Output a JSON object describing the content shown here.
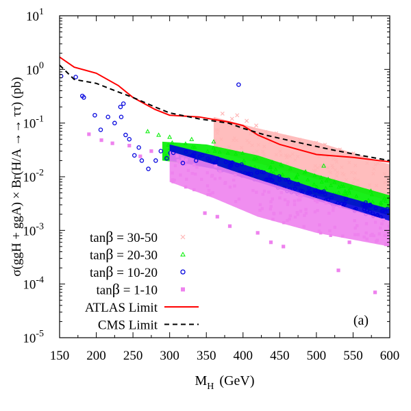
{
  "chart_data": {
    "type": "scatter",
    "y_scale": "log",
    "xlabel": "M",
    "xlabel_sub": "H",
    "xlabel_unit": "(GeV)",
    "ylabel": "σ(ggH + ggA) × Br(H/A →→ ττ) (pb)",
    "panel_label": "(a)",
    "xlim": [
      150,
      600
    ],
    "ylim": [
      1e-05,
      10
    ],
    "x_ticks": [
      150,
      200,
      250,
      300,
      350,
      400,
      450,
      500,
      550,
      600
    ],
    "x_tick_labels": [
      "150",
      "200",
      "250",
      "300",
      "350",
      "400",
      "450",
      "500",
      "550",
      "600"
    ],
    "y_ticks": [
      {
        "value": 1e-05,
        "base": "10",
        "exp": "-5"
      },
      {
        "value": 0.0001,
        "base": "10",
        "exp": "-4"
      },
      {
        "value": 0.001,
        "base": "10",
        "exp": "-3"
      },
      {
        "value": 0.01,
        "base": "10",
        "exp": "-2"
      },
      {
        "value": 0.1,
        "base": "10",
        "exp": "-1"
      },
      {
        "value": 1,
        "base": "10",
        "exp": "0"
      },
      {
        "value": 10,
        "base": "10",
        "exp": "1"
      }
    ],
    "legend_position": "bottom-left",
    "series": [
      {
        "name": "tanβ = 30-50",
        "label_prefix": "tan",
        "label_greek": "β",
        "label_rest": " = 30-50",
        "marker": "x",
        "color": "#ffb6b6",
        "band": {
          "x_start": 360,
          "x_end": 600,
          "upper": [
            [
              360,
              0.13
            ],
            [
              420,
              0.08
            ],
            [
              500,
              0.045
            ],
            [
              600,
              0.017
            ]
          ],
          "lower": [
            [
              360,
              0.03
            ],
            [
              420,
              0.018
            ],
            [
              500,
              0.009
            ],
            [
              600,
              0.0035
            ]
          ]
        },
        "points": [
          [
            372,
            0.15
          ],
          [
            392,
            0.14
          ],
          [
            405,
            0.11
          ],
          [
            418,
            0.09
          ],
          [
            385,
            0.12
          ]
        ]
      },
      {
        "name": "tanβ = 20-30",
        "label_prefix": "tan",
        "label_greek": "β",
        "label_rest": " = 20-30",
        "marker": "triangle",
        "color": "#00ee00",
        "band": {
          "x_start": 290,
          "x_end": 600,
          "upper": [
            [
              290,
              0.045
            ],
            [
              350,
              0.04
            ],
            [
              420,
              0.025
            ],
            [
              500,
              0.011
            ],
            [
              600,
              0.0045
            ]
          ],
          "lower": [
            [
              290,
              0.02
            ],
            [
              350,
              0.016
            ],
            [
              420,
              0.009
            ],
            [
              500,
              0.0045
            ],
            [
              600,
              0.0019
            ]
          ]
        },
        "points": [
          [
            270,
            0.07
          ],
          [
            285,
            0.06
          ],
          [
            300,
            0.055
          ],
          [
            330,
            0.05
          ],
          [
            360,
            0.045
          ],
          [
            510,
            0.016
          ]
        ]
      },
      {
        "name": "tanβ = 10-20",
        "label_prefix": "tan",
        "label_greek": "β",
        "label_rest": " = 10-20",
        "marker": "circle",
        "color": "#0000dd",
        "band": {
          "x_start": 300,
          "x_end": 600,
          "upper": [
            [
              300,
              0.04
            ],
            [
              360,
              0.025
            ],
            [
              420,
              0.014
            ],
            [
              500,
              0.006
            ],
            [
              600,
              0.0025
            ]
          ],
          "lower": [
            [
              300,
              0.02
            ],
            [
              360,
              0.014
            ],
            [
              420,
              0.008
            ],
            [
              500,
              0.0036
            ],
            [
              600,
              0.0015
            ]
          ]
        },
        "points": [
          [
            152,
            0.75
          ],
          [
            181,
            0.32
          ],
          [
            183,
            0.3
          ],
          [
            198,
            0.14
          ],
          [
            206,
            0.075
          ],
          [
            216,
            0.13
          ],
          [
            225,
            0.1
          ],
          [
            234,
            0.13
          ],
          [
            237,
            0.23
          ],
          [
            240,
            0.06
          ],
          [
            252,
            0.025
          ],
          [
            262,
            0.02
          ],
          [
            271,
            0.014
          ],
          [
            281,
            0.02
          ],
          [
            296,
            0.022
          ],
          [
            318,
            0.018
          ],
          [
            336,
            0.02
          ],
          [
            394,
            0.52
          ],
          [
            172,
            0.72
          ],
          [
            233,
            0.2
          ],
          [
            245,
            0.05
          ],
          [
            258,
            0.035
          ],
          [
            288,
            0.03
          ],
          [
            305,
            0.028
          ]
        ]
      },
      {
        "name": "tanβ = 1-10",
        "label_prefix": "tan",
        "label_greek": "β",
        "label_rest": " = 1-10",
        "marker": "square",
        "color": "#ee82ee",
        "band": {
          "x_start": 300,
          "x_end": 600,
          "upper": [
            [
              300,
              0.03
            ],
            [
              360,
              0.017
            ],
            [
              420,
              0.009
            ],
            [
              500,
              0.004
            ],
            [
              600,
              0.0015
            ]
          ],
          "lower": [
            [
              300,
              0.008
            ],
            [
              360,
              0.004
            ],
            [
              420,
              0.0018
            ],
            [
              500,
              0.0009
            ],
            [
              600,
              0.0005
            ]
          ]
        },
        "points": [
          [
            190,
            0.062
          ],
          [
            207,
            0.048
          ],
          [
            222,
            0.042
          ],
          [
            245,
            0.038
          ],
          [
            260,
            0.024
          ],
          [
            275,
            0.03
          ],
          [
            348,
            0.0021
          ],
          [
            365,
            0.0018
          ],
          [
            382,
            0.0012
          ],
          [
            420,
            0.0009
          ],
          [
            438,
            0.0006
          ],
          [
            455,
            0.0005
          ],
          [
            530,
            0.00018
          ],
          [
            545,
            0.0006
          ],
          [
            580,
            7e-05
          ],
          [
            595,
            0.00055
          ]
        ]
      }
    ],
    "limits": [
      {
        "name": "ATLAS Limit",
        "color": "#ff0000",
        "dash": "solid",
        "points": [
          [
            150,
            1.7
          ],
          [
            170,
            1.1
          ],
          [
            200,
            0.85
          ],
          [
            230,
            0.5
          ],
          [
            250,
            0.3
          ],
          [
            280,
            0.18
          ],
          [
            300,
            0.14
          ],
          [
            340,
            0.13
          ],
          [
            380,
            0.105
          ],
          [
            400,
            0.09
          ],
          [
            420,
            0.06
          ],
          [
            450,
            0.04
          ],
          [
            500,
            0.026
          ],
          [
            550,
            0.023
          ],
          [
            600,
            0.019
          ]
        ]
      },
      {
        "name": "CMS Limit",
        "color": "#000000",
        "dash": "dashed",
        "points": [
          [
            150,
            1.2
          ],
          [
            170,
            0.65
          ],
          [
            200,
            0.55
          ],
          [
            230,
            0.38
          ],
          [
            250,
            0.3
          ],
          [
            280,
            0.2
          ],
          [
            300,
            0.155
          ],
          [
            340,
            0.12
          ],
          [
            380,
            0.1
          ],
          [
            400,
            0.08
          ],
          [
            430,
            0.06
          ],
          [
            470,
            0.045
          ],
          [
            520,
            0.032
          ],
          [
            560,
            0.025
          ],
          [
            600,
            0.02
          ]
        ]
      }
    ]
  }
}
